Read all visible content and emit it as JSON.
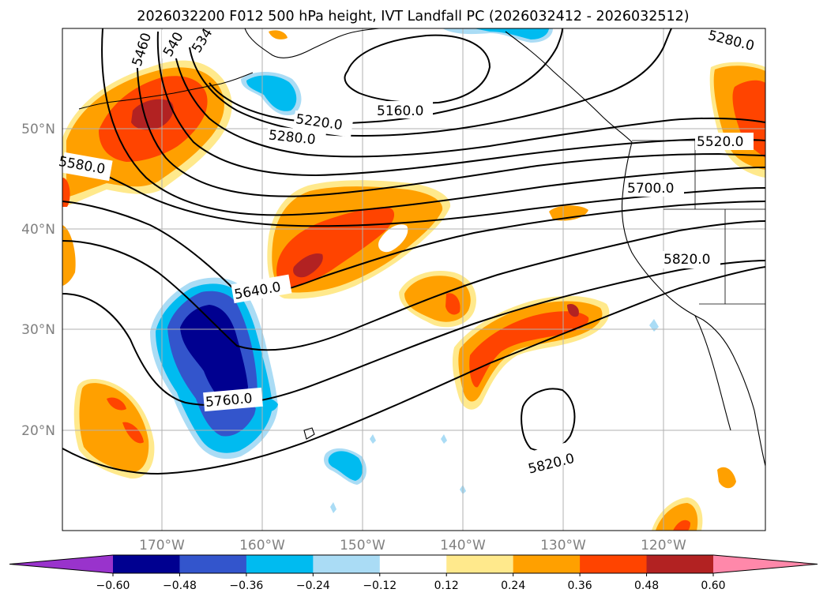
{
  "title": "2026032200 F012 500 hPa height, IVT Landfall PC (2026032412 - 2026032512)",
  "map": {
    "lon_ticks": [
      "170°W",
      "160°W",
      "150°W",
      "140°W",
      "130°W",
      "120°W"
    ],
    "lat_ticks": [
      "50°N",
      "40°N",
      "30°N",
      "20°N"
    ],
    "contour_labels": [
      "5460",
      "540",
      "534",
      "5160.0",
      "5220.0",
      "5280.0",
      "5280.0",
      "5580.0",
      "5520.0",
      "5700.0",
      "5820.0",
      "5640.0",
      "5760.0",
      "5820.0"
    ]
  },
  "colorbar": {
    "tick_labels": [
      "−0.60",
      "−0.48",
      "−0.36",
      "−0.24",
      "−0.12",
      "0.12",
      "0.24",
      "0.36",
      "0.48",
      "0.60"
    ],
    "colors": [
      "#9933cc",
      "#000090",
      "#3355cc",
      "#00bbf0",
      "#aadcf5",
      "#ffffff",
      "#ffe98c",
      "#ffa000",
      "#ff4400",
      "#b22222",
      "#ff88aa"
    ]
  }
}
